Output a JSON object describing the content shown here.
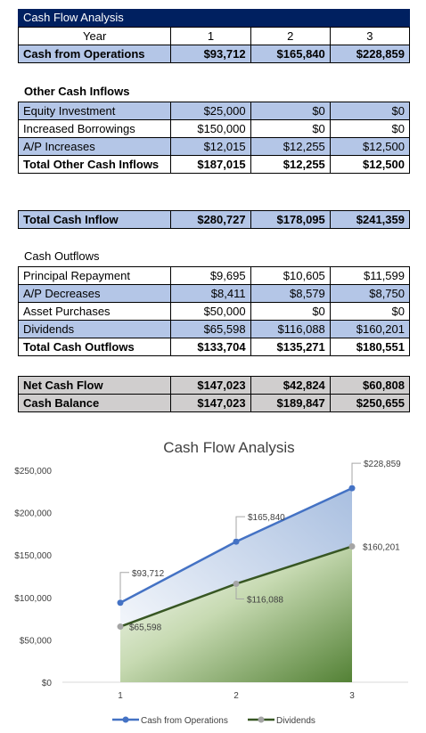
{
  "title": "Cash Flow Analysis",
  "header": {
    "label": "Year",
    "years": [
      "1",
      "2",
      "3"
    ]
  },
  "cash_from_operations": {
    "label": "Cash from Operations",
    "values": [
      "$93,712",
      "$165,840",
      "$228,859"
    ]
  },
  "other_inflows": {
    "heading": "Other Cash Inflows",
    "rows": [
      {
        "label": "Equity Investment",
        "values": [
          "$25,000",
          "$0",
          "$0"
        ]
      },
      {
        "label": "Increased Borrowings",
        "values": [
          "$150,000",
          "$0",
          "$0"
        ]
      },
      {
        "label": "A/P Increases",
        "values": [
          "$12,015",
          "$12,255",
          "$12,500"
        ]
      }
    ],
    "total": {
      "label": "Total Other Cash Inflows",
      "values": [
        "$187,015",
        "$12,255",
        "$12,500"
      ]
    }
  },
  "total_inflow": {
    "label": "Total Cash Inflow",
    "values": [
      "$280,727",
      "$178,095",
      "$241,359"
    ]
  },
  "outflows": {
    "heading": "Cash Outflows",
    "rows": [
      {
        "label": "Principal Repayment",
        "values": [
          "$9,695",
          "$10,605",
          "$11,599"
        ]
      },
      {
        "label": "A/P Decreases",
        "values": [
          "$8,411",
          "$8,579",
          "$8,750"
        ]
      },
      {
        "label": "Asset Purchases",
        "values": [
          "$50,000",
          "$0",
          "$0"
        ]
      },
      {
        "label": "Dividends",
        "values": [
          "$65,598",
          "$116,088",
          "$160,201"
        ]
      }
    ],
    "total": {
      "label": "Total Cash Outflows",
      "values": [
        "$133,704",
        "$135,271",
        "$180,551"
      ]
    }
  },
  "summary": [
    {
      "label": "Net Cash Flow",
      "values": [
        "$147,023",
        "$42,824",
        "$60,808"
      ]
    },
    {
      "label": "Cash Balance",
      "values": [
        "$147,023",
        "$189,847",
        "$250,655"
      ]
    }
  ],
  "colors": {
    "title_bar": "#002060",
    "blue_row": "#b4c6e7",
    "gray_row": "#d0cece",
    "ops_line": "#4472c4",
    "div_line": "#375623",
    "div_marker": "#a5a5a5"
  },
  "chart_data": {
    "type": "area",
    "title": "Cash Flow Analysis",
    "categories": [
      "1",
      "2",
      "3"
    ],
    "ylim": [
      0,
      250000
    ],
    "yticks": [
      "$0",
      "$50,000",
      "$100,000",
      "$150,000",
      "$200,000",
      "$250,000"
    ],
    "series": [
      {
        "name": "Cash from Operations",
        "values": [
          93712,
          165840,
          228859
        ],
        "labels": [
          "$93,712",
          "$165,840",
          "$228,859"
        ]
      },
      {
        "name": "Dividends",
        "values": [
          65598,
          116088,
          160201
        ],
        "labels": [
          "$65,598",
          "$116,088",
          "$160,201"
        ]
      }
    ],
    "legend": "bottom",
    "grid": false
  }
}
